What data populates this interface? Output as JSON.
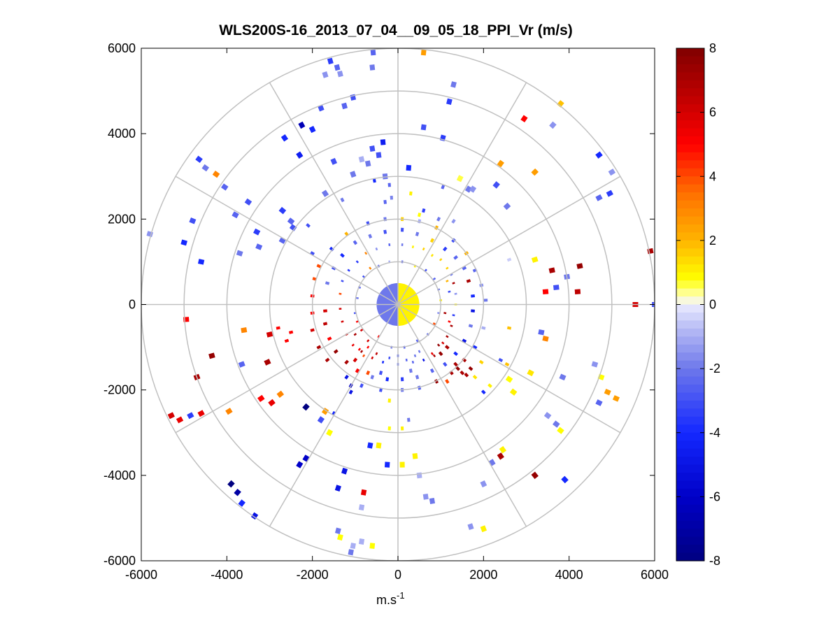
{
  "chart_data": {
    "type": "polar-ppi-scatter",
    "title": "WLS200S-16_2013_07_04__09_05_18_PPI_Vr (m/s)",
    "xlabel_base": "m.s",
    "xlabel_exp": "-1",
    "ylabel": "",
    "xlim": [
      -6000,
      6000
    ],
    "ylim": [
      -6000,
      6000
    ],
    "xticks": [
      -6000,
      -4000,
      -2000,
      0,
      2000,
      4000,
      6000
    ],
    "yticks": [
      6000,
      4000,
      2000,
      0,
      -2000,
      -4000,
      -6000
    ],
    "xtick_labels": [
      "-6000",
      "-4000",
      "-2000",
      "0",
      "2000",
      "4000",
      "6000"
    ],
    "ytick_labels": [
      "6000",
      "4000",
      "2000",
      "0",
      "-2000",
      "-4000",
      "-6000"
    ],
    "range_rings": [
      1000,
      2000,
      3000,
      4000,
      5000,
      6000
    ],
    "spoke_angles_deg": [
      0,
      30,
      60,
      90,
      120,
      150,
      180,
      210,
      240,
      270,
      300,
      330
    ],
    "colorbar": {
      "min": -8,
      "max": 8,
      "ticks": [
        8,
        6,
        4,
        2,
        0,
        -2,
        -4,
        -6,
        -8
      ],
      "tick_labels": [
        "8",
        "6",
        "4",
        "2",
        "0",
        "-2",
        "-4",
        "-6",
        "-8"
      ]
    },
    "inner_core": {
      "radius": 500,
      "east_half_v": 1.0,
      "west_half_v": -2.0
    },
    "points": [
      [
        -1580,
        5700,
        -3.5
      ],
      [
        -1420,
        5550,
        -2.5
      ],
      [
        -1350,
        5400,
        -1.5
      ],
      [
        -580,
        5900,
        -2.5
      ],
      [
        -600,
        5550,
        -2
      ],
      [
        -1700,
        5380,
        -1.5
      ],
      [
        600,
        5900,
        2.5
      ],
      [
        1300,
        5150,
        -2
      ],
      [
        -1050,
        4850,
        -3
      ],
      [
        -1250,
        4650,
        -2.5
      ],
      [
        -1800,
        4600,
        -3
      ],
      [
        -2250,
        4200,
        -6.5
      ],
      [
        1200,
        4750,
        -3.5
      ],
      [
        2950,
        4350,
        5
      ],
      [
        3620,
        4200,
        -1.5
      ],
      [
        3800,
        4700,
        1.8
      ],
      [
        4700,
        3500,
        -4
      ],
      [
        5000,
        3100,
        -1.5
      ],
      [
        4950,
        2600,
        -3.5
      ],
      [
        4700,
        2500,
        -2.5
      ],
      [
        -2300,
        3500,
        -4.5
      ],
      [
        -4650,
        3400,
        -3.5
      ],
      [
        -4500,
        3200,
        -2
      ],
      [
        -4250,
        3050,
        3
      ],
      [
        -4050,
        2750,
        -2.5
      ],
      [
        -3500,
        2400,
        -3
      ],
      [
        -3800,
        2100,
        -2.5
      ],
      [
        -3300,
        1700,
        -3.5
      ],
      [
        -3250,
        1350,
        -2.5
      ],
      [
        -2700,
        2200,
        -3.5
      ],
      [
        -2500,
        1950,
        -2.5
      ],
      [
        -2450,
        1800,
        -3
      ],
      [
        -2100,
        1850,
        -3
      ],
      [
        -4800,
        1960,
        -3
      ],
      [
        -5000,
        1450,
        -4
      ],
      [
        -5800,
        1650,
        -1.5
      ],
      [
        -4600,
        1000,
        -4
      ],
      [
        -3700,
        1200,
        -2
      ],
      [
        -2700,
        1500,
        -2.5
      ],
      [
        -2000,
        1200,
        -3
      ],
      [
        -4950,
        -350,
        5
      ],
      [
        -3600,
        -600,
        3
      ],
      [
        -3000,
        -700,
        6
      ],
      [
        -2800,
        -550,
        5
      ],
      [
        -2600,
        -850,
        5
      ],
      [
        -2500,
        -650,
        5
      ],
      [
        -4350,
        -1200,
        7.5
      ],
      [
        -3650,
        -1400,
        -2.5
      ],
      [
        -3050,
        -1350,
        7
      ],
      [
        -4700,
        -1700,
        7
      ],
      [
        -5100,
        -2700,
        5.5
      ],
      [
        -5300,
        -2600,
        6
      ],
      [
        -4850,
        -2600,
        -3.5
      ],
      [
        -4600,
        -2550,
        5.5
      ],
      [
        -3950,
        -2500,
        3
      ],
      [
        -3200,
        -2200,
        5
      ],
      [
        -2950,
        -2300,
        5.5
      ],
      [
        -2750,
        -2100,
        3
      ],
      [
        -2150,
        -2400,
        -8
      ],
      [
        -1800,
        -2700,
        -3
      ],
      [
        -1600,
        -3000,
        0.8
      ],
      [
        -1700,
        -2500,
        2.5
      ],
      [
        -1500,
        -2550,
        -4
      ],
      [
        -1100,
        -1900,
        -6
      ],
      [
        -3900,
        -4200,
        -8
      ],
      [
        -3750,
        -4400,
        -7
      ],
      [
        -3650,
        -4650,
        -4
      ],
      [
        -3350,
        -4950,
        -5
      ],
      [
        -2300,
        -3750,
        -6
      ],
      [
        -2150,
        -3600,
        -6
      ],
      [
        -1250,
        -3900,
        -5
      ],
      [
        -1400,
        -4300,
        -5
      ],
      [
        -800,
        -4400,
        5.5
      ],
      [
        -850,
        -4750,
        -1
      ],
      [
        -1050,
        -5650,
        -1
      ],
      [
        -1100,
        -5800,
        -2
      ],
      [
        -850,
        -5550,
        -1
      ],
      [
        -600,
        -5650,
        0.8
      ],
      [
        -1400,
        -5300,
        -2
      ],
      [
        -1350,
        -5450,
        0.8
      ],
      [
        -650,
        -3300,
        -4
      ],
      [
        -450,
        -3300,
        1
      ],
      [
        -250,
        -3750,
        -4
      ],
      [
        -200,
        -2900,
        0.8
      ],
      [
        100,
        -2900,
        1
      ],
      [
        100,
        -3750,
        1
      ],
      [
        250,
        -2700,
        -2
      ],
      [
        -200,
        -2250,
        1
      ],
      [
        2200,
        -3700,
        -2
      ],
      [
        2400,
        -3550,
        7
      ],
      [
        2000,
        -4200,
        -1.5
      ],
      [
        3200,
        -4000,
        7.5
      ],
      [
        3900,
        -4100,
        -4
      ],
      [
        1700,
        -5200,
        -1.5
      ],
      [
        2000,
        -5250,
        1
      ],
      [
        800,
        -4600,
        -2
      ],
      [
        650,
        -4500,
        -1.5
      ],
      [
        500,
        -4000,
        -1
      ],
      [
        400,
        -3550,
        1
      ],
      [
        2450,
        -3400,
        1
      ],
      [
        3500,
        -2600,
        -1.5
      ],
      [
        3700,
        -2800,
        -2
      ],
      [
        3800,
        -2950,
        0.8
      ],
      [
        4700,
        -2300,
        -2.5
      ],
      [
        4900,
        -2050,
        2.5
      ],
      [
        5100,
        -2200,
        2.5
      ],
      [
        4750,
        -1700,
        0.8
      ],
      [
        4600,
        -1400,
        -1.5
      ],
      [
        5550,
        0,
        6
      ],
      [
        6000,
        0,
        -3
      ],
      [
        5900,
        1250,
        7
      ],
      [
        4200,
        300,
        6.5
      ],
      [
        4250,
        900,
        7.5
      ],
      [
        3600,
        800,
        7
      ],
      [
        3700,
        400,
        -3
      ],
      [
        3950,
        650,
        -2
      ],
      [
        3450,
        300,
        5
      ],
      [
        3350,
        -650,
        -2.5
      ],
      [
        3450,
        -800,
        3
      ],
      [
        2600,
        -550,
        1.8
      ],
      [
        2550,
        -1400,
        1.8
      ],
      [
        2000,
        -2050,
        -4
      ],
      [
        2150,
        -1900,
        1
      ],
      [
        1800,
        -1700,
        1.2
      ],
      [
        1950,
        -1350,
        1.5
      ],
      [
        2400,
        -1300,
        -3
      ],
      [
        2600,
        -1750,
        0.8
      ],
      [
        2700,
        -2050,
        1
      ],
      [
        3850,
        -1700,
        -2
      ],
      [
        3100,
        -1600,
        1.2
      ],
      [
        1650,
        2700,
        -2
      ],
      [
        1050,
        2750,
        -2.5
      ],
      [
        1300,
        1950,
        -1.5
      ],
      [
        1750,
        2700,
        -1.5
      ],
      [
        1450,
        2950,
        0.6
      ],
      [
        1050,
        3900,
        -3.5
      ],
      [
        3200,
        3100,
        2.5
      ],
      [
        2400,
        3300,
        2.5
      ],
      [
        3200,
        1050,
        1
      ],
      [
        2600,
        1050,
        -0.5
      ],
      [
        2550,
        2300,
        -2
      ],
      [
        2300,
        2800,
        -3
      ],
      [
        600,
        4150,
        -3
      ],
      [
        250,
        3200,
        -4
      ],
      [
        -300,
        3000,
        -2
      ],
      [
        -200,
        2800,
        -2.5
      ],
      [
        -450,
        3500,
        -3
      ],
      [
        -350,
        3800,
        -4.5
      ],
      [
        -700,
        3300,
        -2
      ],
      [
        -1050,
        3050,
        -2
      ],
      [
        -850,
        3400,
        -1
      ],
      [
        -150,
        2500,
        -1.8
      ],
      [
        -300,
        2400,
        -2.5
      ],
      [
        300,
        2600,
        1
      ],
      [
        600,
        2200,
        -3.5
      ],
      [
        950,
        2000,
        -2
      ],
      [
        500,
        2100,
        0.8
      ],
      [
        -1300,
        2450,
        -2
      ],
      [
        -1700,
        2600,
        -2
      ],
      [
        -1500,
        3350,
        -3
      ],
      [
        -2000,
        4100,
        -4
      ],
      [
        -2650,
        3900,
        -4
      ],
      [
        -600,
        3650,
        -3
      ],
      [
        -550,
        2900,
        -4
      ],
      [
        350,
        1350,
        1
      ],
      [
        600,
        1300,
        1.5
      ],
      [
        800,
        1150,
        1.2
      ],
      [
        1000,
        1050,
        1.5
      ],
      [
        1150,
        850,
        1.5
      ],
      [
        1250,
        700,
        -2
      ],
      [
        1300,
        500,
        7
      ],
      [
        1350,
        250,
        -1.5
      ],
      [
        1350,
        0,
        1
      ],
      [
        1300,
        -250,
        -3.5
      ],
      [
        1250,
        -500,
        7
      ],
      [
        1150,
        -750,
        7
      ],
      [
        950,
        -950,
        7.5
      ],
      [
        800,
        -1150,
        5.5
      ],
      [
        600,
        -1300,
        -5
      ],
      [
        350,
        -1350,
        -2.5
      ],
      [
        0,
        -1400,
        -3
      ],
      [
        -350,
        -1350,
        -4
      ],
      [
        -600,
        -1250,
        6
      ],
      [
        -850,
        -1100,
        7
      ],
      [
        -1050,
        -950,
        5.5
      ],
      [
        -1200,
        -700,
        6
      ],
      [
        -1300,
        -400,
        6
      ],
      [
        -1350,
        -100,
        6
      ],
      [
        -1350,
        250,
        4
      ],
      [
        -1300,
        550,
        -3
      ],
      [
        -1150,
        800,
        -3.5
      ],
      [
        -950,
        1000,
        -3.5
      ],
      [
        -750,
        1200,
        3
      ],
      [
        -500,
        1300,
        -1.5
      ],
      [
        -200,
        1400,
        -2.5
      ],
      [
        100,
        1400,
        -2
      ],
      [
        -1700,
        -150,
        6
      ],
      [
        -1700,
        -450,
        6.5
      ],
      [
        -1600,
        -800,
        5
      ],
      [
        -1450,
        -1100,
        7.5
      ],
      [
        -1200,
        -1350,
        7
      ],
      [
        -950,
        -1550,
        5
      ],
      [
        -600,
        -1700,
        -2
      ],
      [
        -250,
        -1750,
        -4
      ],
      [
        100,
        -1750,
        -3.5
      ],
      [
        450,
        -1700,
        -2
      ],
      [
        800,
        -1550,
        -2.5
      ],
      [
        1100,
        -1400,
        -3
      ],
      [
        1350,
        -1150,
        -4
      ],
      [
        1550,
        -850,
        -5
      ],
      [
        1700,
        -500,
        -2
      ],
      [
        1750,
        -150,
        -5
      ],
      [
        1750,
        200,
        -4
      ],
      [
        1650,
        550,
        7
      ],
      [
        1550,
        850,
        -2.5
      ],
      [
        1350,
        1100,
        -2.5
      ],
      [
        1100,
        1300,
        -3.5
      ],
      [
        800,
        1500,
        1.5
      ],
      [
        450,
        1650,
        -2
      ],
      [
        100,
        1750,
        -3
      ],
      [
        -300,
        1700,
        -3
      ],
      [
        -650,
        1600,
        -2
      ],
      [
        -1000,
        1450,
        -2.5
      ],
      [
        -1300,
        1150,
        -4
      ],
      [
        -1500,
        850,
        -3
      ],
      [
        -1650,
        500,
        -2
      ],
      [
        -2000,
        -200,
        5
      ],
      [
        -2000,
        200,
        5
      ],
      [
        -1950,
        600,
        4
      ],
      [
        -2000,
        -600,
        6
      ],
      [
        -1850,
        -1000,
        7
      ],
      [
        -1650,
        -1300,
        7
      ],
      [
        -1200,
        -1700,
        -5
      ],
      [
        -850,
        -1900,
        -3
      ],
      [
        -400,
        -2000,
        -3
      ],
      [
        100,
        -2000,
        -2
      ],
      [
        500,
        -1950,
        -2.5
      ],
      [
        900,
        -1800,
        7.5
      ],
      [
        1250,
        -1600,
        7
      ],
      [
        1550,
        -1300,
        7
      ],
      [
        1800,
        -1000,
        -4
      ],
      [
        2000,
        -550,
        -1
      ],
      [
        2050,
        100,
        -2
      ],
      [
        1950,
        450,
        -1.5
      ],
      [
        1800,
        800,
        -2.5
      ],
      [
        1600,
        1200,
        2
      ],
      [
        1300,
        1500,
        -3
      ],
      [
        900,
        1800,
        2
      ],
      [
        500,
        1950,
        -1
      ],
      [
        100,
        2000,
        1.5
      ],
      [
        -300,
        2000,
        -2
      ],
      [
        -700,
        1900,
        -3
      ],
      [
        -1200,
        1650,
        2
      ],
      [
        -1550,
        1300,
        -4
      ],
      [
        -1850,
        900,
        4
      ],
      [
        -900,
        -1050,
        5
      ],
      [
        -700,
        -1000,
        5
      ],
      [
        -1000,
        -700,
        7
      ],
      [
        1000,
        -1150,
        7.5
      ],
      [
        1150,
        -1000,
        7
      ],
      [
        1050,
        -900,
        6
      ],
      [
        850,
        -1200,
        7
      ],
      [
        1350,
        -1400,
        7
      ],
      [
        1400,
        -1500,
        7.5
      ],
      [
        1500,
        -1600,
        7
      ],
      [
        1700,
        -1500,
        7.5
      ],
      [
        1600,
        -1650,
        7
      ],
      [
        1150,
        -1800,
        4
      ],
      [
        -1100,
        -2050,
        -5
      ],
      [
        -700,
        -1600,
        4
      ],
      [
        -400,
        -1600,
        -3
      ],
      [
        300,
        -1550,
        -2
      ],
      [
        -500,
        -1150,
        6.5
      ],
      [
        -450,
        -750,
        5
      ],
      [
        -700,
        -850,
        6
      ],
      [
        -850,
        -600,
        6
      ],
      [
        -950,
        -400,
        5
      ],
      [
        -1000,
        -200,
        -3
      ],
      [
        -950,
        150,
        -2
      ],
      [
        -900,
        400,
        -2.5
      ],
      [
        -800,
        650,
        -3
      ],
      [
        -650,
        850,
        3
      ],
      [
        -450,
        900,
        -2
      ],
      [
        -200,
        1000,
        -1
      ],
      [
        100,
        1000,
        -2.5
      ],
      [
        400,
        900,
        1
      ],
      [
        650,
        800,
        -3
      ],
      [
        850,
        600,
        -2.5
      ],
      [
        950,
        350,
        -2
      ],
      [
        1000,
        100,
        1
      ],
      [
        950,
        -200,
        -1.5
      ],
      [
        850,
        -450,
        4
      ],
      [
        700,
        -700,
        -2
      ],
      [
        450,
        -850,
        -2.5
      ],
      [
        150,
        -1000,
        -3
      ],
      [
        -150,
        -1000,
        -2
      ],
      [
        -800,
        -1200,
        4
      ],
      [
        -1000,
        -1300,
        6
      ],
      [
        500,
        -1100,
        -2
      ],
      [
        400,
        -1200,
        -2
      ],
      [
        200,
        -1300,
        -2.5
      ],
      [
        0,
        -1200,
        -4
      ],
      [
        -200,
        -1250,
        -3
      ],
      [
        1200,
        300,
        -3
      ],
      [
        1100,
        -200,
        7
      ],
      [
        1200,
        -400,
        5
      ],
      [
        1150,
        550,
        2
      ]
    ]
  }
}
